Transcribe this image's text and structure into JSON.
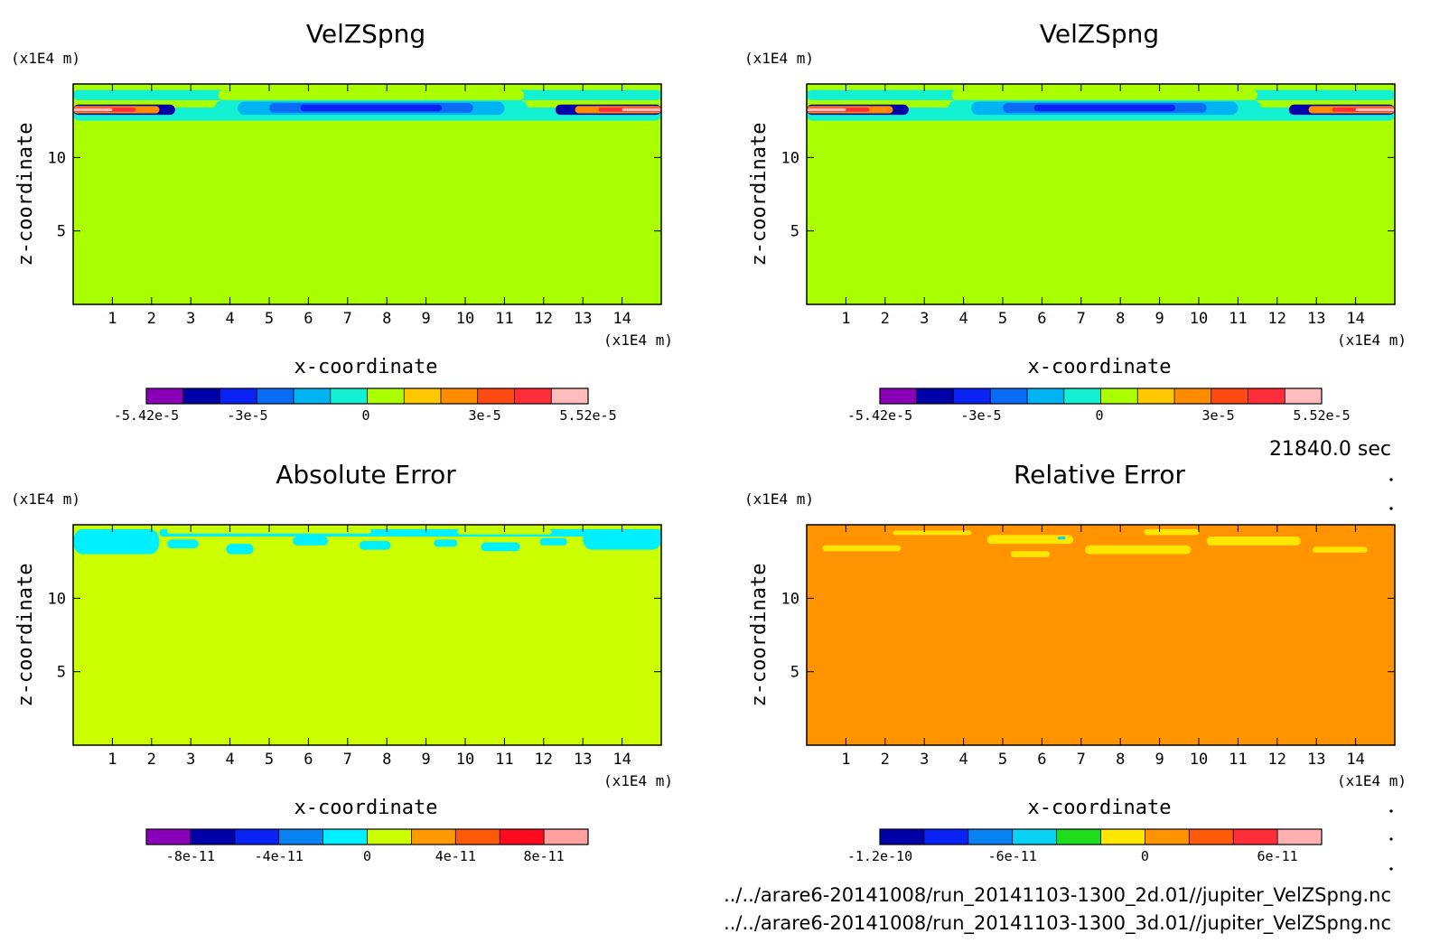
{
  "figure": {
    "time_label": "21840.0 sec",
    "files": [
      "../../arare6-20141008/run_20141103-1300_2d.01//jupiter_VelZSpng.nc",
      "../../arare6-20141008/run_20141103-1300_3d.01//jupiter_VelZSpng.nc"
    ]
  },
  "chart_data": [
    {
      "type": "heatmap",
      "title": "VelZSpng",
      "xlabel": "x-coordinate",
      "ylabel": "z-coordinate",
      "x_unit": "(x1E4 m)",
      "y_unit": "(x1E4 m)",
      "xlim": [
        0,
        15
      ],
      "ylim": [
        0,
        15
      ],
      "x_ticks": [
        1,
        2,
        3,
        4,
        5,
        6,
        7,
        8,
        9,
        10,
        11,
        12,
        13,
        14
      ],
      "y_ticks": [
        5,
        10
      ],
      "colors": [
        "#8a00b8",
        "#0000a8",
        "#0a22f2",
        "#0a6cf4",
        "#00b4f4",
        "#14f0d2",
        "#aaff00",
        "#ffc800",
        "#ff8c00",
        "#ff4a14",
        "#ff2e3a",
        "#ffbcbc"
      ],
      "colorbar_labels": [
        {
          "text": "-5.42e-5",
          "pos": 0
        },
        {
          "text": "-3e-5",
          "pos": 0.229
        },
        {
          "text": "0",
          "pos": 0.497
        },
        {
          "text": "3e-5",
          "pos": 0.766
        },
        {
          "text": "5.52e-5",
          "pos": 1
        }
      ],
      "background_level": 6,
      "regions": [
        {
          "level": 5,
          "x": [
            0,
            15
          ],
          "z": [
            13.9,
            14.6
          ]
        },
        {
          "level": 5,
          "x": [
            0,
            15
          ],
          "z": [
            12.5,
            13.4
          ]
        },
        {
          "level": 6,
          "x": [
            3.7,
            11.5
          ],
          "z": [
            13.9,
            14.6
          ]
        },
        {
          "level": 5,
          "x": [
            3.6,
            11.6
          ],
          "z": [
            12.7,
            13.9
          ]
        },
        {
          "level": 4,
          "x": [
            4.2,
            11.0
          ],
          "z": [
            12.9,
            13.8
          ]
        },
        {
          "level": 3,
          "x": [
            5.0,
            10.2
          ],
          "z": [
            13.05,
            13.7
          ]
        },
        {
          "level": 2,
          "x": [
            5.8,
            9.4
          ],
          "z": [
            13.15,
            13.6
          ]
        },
        {
          "level": 1,
          "x": [
            0,
            2.6
          ],
          "z": [
            12.9,
            13.6
          ]
        },
        {
          "level": 1,
          "x": [
            12.3,
            15
          ],
          "z": [
            12.9,
            13.6
          ]
        },
        {
          "level": 8,
          "x": [
            0,
            2.2
          ],
          "z": [
            13.0,
            13.5
          ]
        },
        {
          "level": 8,
          "x": [
            12.8,
            15
          ],
          "z": [
            13.0,
            13.5
          ]
        },
        {
          "level": 10,
          "x": [
            0,
            1.6
          ],
          "z": [
            13.1,
            13.4
          ]
        },
        {
          "level": 10,
          "x": [
            13.4,
            15
          ],
          "z": [
            13.1,
            13.4
          ]
        },
        {
          "level": 11,
          "x": [
            0,
            1.0
          ],
          "z": [
            13.15,
            13.35
          ]
        },
        {
          "level": 11,
          "x": [
            14.0,
            15
          ],
          "z": [
            13.15,
            13.35
          ]
        }
      ]
    },
    {
      "type": "heatmap",
      "title": "VelZSpng",
      "xlabel": "x-coordinate",
      "ylabel": "z-coordinate",
      "x_unit": "(x1E4 m)",
      "y_unit": "(x1E4 m)",
      "xlim": [
        0,
        15
      ],
      "ylim": [
        0,
        15
      ],
      "x_ticks": [
        1,
        2,
        3,
        4,
        5,
        6,
        7,
        8,
        9,
        10,
        11,
        12,
        13,
        14
      ],
      "y_ticks": [
        5,
        10
      ],
      "colors": [
        "#8a00b8",
        "#0000a8",
        "#0a22f2",
        "#0a6cf4",
        "#00b4f4",
        "#14f0d2",
        "#aaff00",
        "#ffc800",
        "#ff8c00",
        "#ff4a14",
        "#ff2e3a",
        "#ffbcbc"
      ],
      "colorbar_labels": [
        {
          "text": "-5.42e-5",
          "pos": 0
        },
        {
          "text": "-3e-5",
          "pos": 0.229
        },
        {
          "text": "0",
          "pos": 0.497
        },
        {
          "text": "3e-5",
          "pos": 0.766
        },
        {
          "text": "5.52e-5",
          "pos": 1
        }
      ],
      "background_level": 6,
      "regions": [
        {
          "level": 5,
          "x": [
            0,
            15
          ],
          "z": [
            13.9,
            14.6
          ]
        },
        {
          "level": 5,
          "x": [
            0,
            15
          ],
          "z": [
            12.5,
            13.4
          ]
        },
        {
          "level": 6,
          "x": [
            3.7,
            11.5
          ],
          "z": [
            13.9,
            14.6
          ]
        },
        {
          "level": 5,
          "x": [
            3.6,
            11.6
          ],
          "z": [
            12.7,
            13.9
          ]
        },
        {
          "level": 4,
          "x": [
            4.2,
            11.0
          ],
          "z": [
            12.9,
            13.8
          ]
        },
        {
          "level": 3,
          "x": [
            5.0,
            10.2
          ],
          "z": [
            13.05,
            13.7
          ]
        },
        {
          "level": 2,
          "x": [
            5.8,
            9.4
          ],
          "z": [
            13.15,
            13.6
          ]
        },
        {
          "level": 1,
          "x": [
            0,
            2.6
          ],
          "z": [
            12.9,
            13.6
          ]
        },
        {
          "level": 1,
          "x": [
            12.3,
            15
          ],
          "z": [
            12.9,
            13.6
          ]
        },
        {
          "level": 8,
          "x": [
            0,
            2.2
          ],
          "z": [
            13.0,
            13.5
          ]
        },
        {
          "level": 8,
          "x": [
            12.8,
            15
          ],
          "z": [
            13.0,
            13.5
          ]
        },
        {
          "level": 10,
          "x": [
            0,
            1.6
          ],
          "z": [
            13.1,
            13.4
          ]
        },
        {
          "level": 10,
          "x": [
            13.4,
            15
          ],
          "z": [
            13.1,
            13.4
          ]
        },
        {
          "level": 11,
          "x": [
            0,
            1.0
          ],
          "z": [
            13.15,
            13.35
          ]
        },
        {
          "level": 11,
          "x": [
            14.0,
            15
          ],
          "z": [
            13.15,
            13.35
          ]
        }
      ]
    },
    {
      "type": "heatmap",
      "title": "Absolute Error",
      "xlabel": "x-coordinate",
      "ylabel": "z-coordinate",
      "x_unit": "(x1E4 m)",
      "y_unit": "(x1E4 m)",
      "xlim": [
        0,
        15
      ],
      "ylim": [
        0,
        15
      ],
      "x_ticks": [
        1,
        2,
        3,
        4,
        5,
        6,
        7,
        8,
        9,
        10,
        11,
        12,
        13,
        14
      ],
      "y_ticks": [
        5,
        10
      ],
      "colors": [
        "#8a00b8",
        "#0000a8",
        "#0a22f2",
        "#0a82f2",
        "#00f0ff",
        "#ccff00",
        "#ff9a00",
        "#ff5a0a",
        "#ff0a1e",
        "#ffa0a0"
      ],
      "colorbar_labels": [
        {
          "text": "-8e-11",
          "pos": 0.1
        },
        {
          "text": "-4e-11",
          "pos": 0.3
        },
        {
          "text": "0",
          "pos": 0.5
        },
        {
          "text": "4e-11",
          "pos": 0.7
        },
        {
          "text": "8e-11",
          "pos": 0.9
        }
      ],
      "background_level": 5,
      "regions": [
        {
          "level": 4,
          "x": [
            0,
            2.2
          ],
          "z": [
            13.0,
            14.7
          ]
        },
        {
          "level": 4,
          "x": [
            2.2,
            15
          ],
          "z": [
            14.2,
            14.7
          ]
        },
        {
          "level": 4,
          "x": [
            13.0,
            15
          ],
          "z": [
            13.3,
            14.7
          ]
        },
        {
          "level": 4,
          "x": [
            2.4,
            3.2
          ],
          "z": [
            13.4,
            14.0
          ]
        },
        {
          "level": 4,
          "x": [
            3.9,
            4.6
          ],
          "z": [
            13.0,
            13.7
          ]
        },
        {
          "level": 4,
          "x": [
            5.6,
            6.5
          ],
          "z": [
            13.6,
            14.2
          ]
        },
        {
          "level": 4,
          "x": [
            7.3,
            8.1
          ],
          "z": [
            13.3,
            13.9
          ]
        },
        {
          "level": 4,
          "x": [
            9.2,
            9.8
          ],
          "z": [
            13.5,
            14.0
          ]
        },
        {
          "level": 4,
          "x": [
            10.4,
            11.4
          ],
          "z": [
            13.2,
            13.8
          ]
        },
        {
          "level": 4,
          "x": [
            11.9,
            12.6
          ],
          "z": [
            13.6,
            14.1
          ]
        },
        {
          "level": 5,
          "x": [
            2.4,
            7.6
          ],
          "z": [
            14.4,
            14.7
          ]
        },
        {
          "level": 5,
          "x": [
            9.8,
            12.2
          ],
          "z": [
            14.35,
            14.7
          ]
        }
      ]
    },
    {
      "type": "heatmap",
      "title": "Relative Error",
      "xlabel": "x-coordinate",
      "ylabel": "z-coordinate",
      "x_unit": "(x1E4 m)",
      "y_unit": "(x1E4 m)",
      "xlim": [
        0,
        15
      ],
      "ylim": [
        0,
        15
      ],
      "x_ticks": [
        1,
        2,
        3,
        4,
        5,
        6,
        7,
        8,
        9,
        10,
        11,
        12,
        13,
        14
      ],
      "y_ticks": [
        5,
        10
      ],
      "colors": [
        "#0000a8",
        "#0a22f2",
        "#0a82f2",
        "#0ad2f2",
        "#1ede1e",
        "#ffe600",
        "#ff9400",
        "#ff5a0a",
        "#ff2e3a",
        "#ffb0b0"
      ],
      "colorbar_labels": [
        {
          "text": "-1.2e-10",
          "pos": 0
        },
        {
          "text": "-6e-11",
          "pos": 0.3
        },
        {
          "text": "0",
          "pos": 0.6
        },
        {
          "text": "6e-11",
          "pos": 0.9
        }
      ],
      "background_level": 6,
      "regions": [
        {
          "level": 5,
          "x": [
            0.4,
            2.4
          ],
          "z": [
            13.2,
            13.6
          ]
        },
        {
          "level": 5,
          "x": [
            2.2,
            4.2
          ],
          "z": [
            14.3,
            14.6
          ]
        },
        {
          "level": 5,
          "x": [
            4.6,
            6.8
          ],
          "z": [
            13.7,
            14.3
          ]
        },
        {
          "level": 5,
          "x": [
            7.1,
            9.8
          ],
          "z": [
            13.0,
            13.6
          ]
        },
        {
          "level": 5,
          "x": [
            10.2,
            12.6
          ],
          "z": [
            13.6,
            14.2
          ]
        },
        {
          "level": 5,
          "x": [
            8.6,
            10.0
          ],
          "z": [
            14.3,
            14.7
          ]
        },
        {
          "level": 5,
          "x": [
            5.2,
            6.2
          ],
          "z": [
            12.8,
            13.2
          ]
        },
        {
          "level": 5,
          "x": [
            12.9,
            14.3
          ],
          "z": [
            13.1,
            13.5
          ]
        },
        {
          "level": 3,
          "x": [
            6.4,
            6.6
          ],
          "z": [
            14.0,
            14.2
          ]
        }
      ]
    }
  ]
}
